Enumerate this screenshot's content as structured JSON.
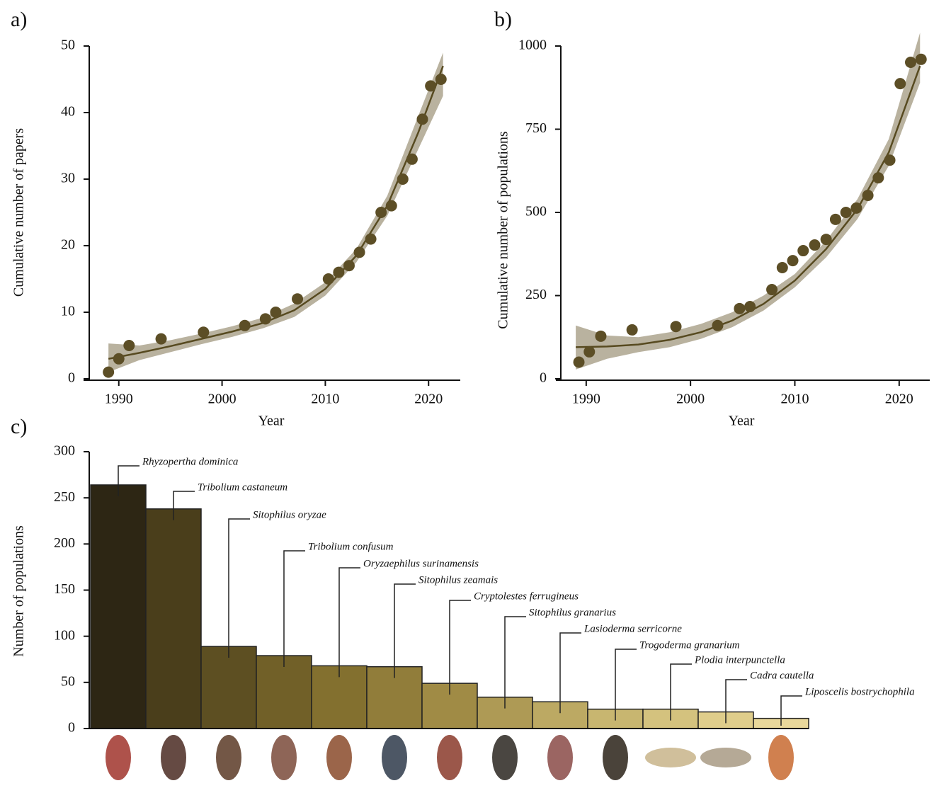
{
  "chart_data": [
    {
      "type": "scatter-fit",
      "panel_label": "a)",
      "x_label": "Year",
      "y_label": "Cumulative number of papers",
      "xlim": [
        1987,
        2023
      ],
      "xticks": [
        1990,
        2000,
        2010,
        2020
      ],
      "ylim": [
        0,
        50
      ],
      "yticks": [
        0,
        10,
        20,
        30,
        40,
        50
      ],
      "points": {
        "color": "#5c4e26",
        "x": [
          1989.0,
          1990.0,
          1991.0,
          1994.1,
          1998.2,
          2002.2,
          2004.2,
          2005.2,
          2007.3,
          2010.3,
          2011.3,
          2012.3,
          2013.3,
          2014.4,
          2015.4,
          2016.4,
          2017.5,
          2018.4,
          2019.4,
          2020.2,
          2021.2
        ],
        "values": [
          1,
          3,
          5,
          6,
          7,
          8,
          9,
          10,
          12,
          15,
          16,
          17,
          19,
          21,
          25,
          26,
          30,
          33,
          39,
          44,
          45
        ]
      },
      "fit": {
        "color": "#574a20",
        "band_color": "#b9b29f",
        "x": [
          1989,
          1992,
          1995,
          1998,
          2001,
          2004,
          2007,
          2010,
          2013,
          2016,
          2019,
          2021.4
        ],
        "values": [
          3,
          3.9,
          4.9,
          6,
          7.1,
          8.4,
          10.3,
          13.5,
          18.5,
          26,
          37,
          47
        ],
        "lower": [
          1,
          2.8,
          4,
          5.2,
          6.3,
          7.6,
          9.3,
          12.5,
          17.5,
          24.5,
          34.5,
          42.5
        ],
        "upper": [
          5.3,
          5,
          5.8,
          6.8,
          7.9,
          9.2,
          11.3,
          14.5,
          19.5,
          27.5,
          39.5,
          49
        ]
      }
    },
    {
      "type": "scatter-fit",
      "panel_label": "b)",
      "x_label": "Year",
      "y_label": "Cumulative number of populations",
      "xlim": [
        1987.5,
        2023
      ],
      "xticks": [
        1990,
        2000,
        2010,
        2020
      ],
      "ylim": [
        0,
        1000
      ],
      "yticks": [
        0,
        250,
        500,
        750,
        1000
      ],
      "points": {
        "color": "#5c4e26",
        "x": [
          1989.3,
          1990.3,
          1991.4,
          1994.4,
          1998.6,
          2002.6,
          2004.7,
          2005.7,
          2007.8,
          2008.8,
          2009.8,
          2010.8,
          2011.9,
          2013.0,
          2013.9,
          2014.9,
          2015.9,
          2017.0,
          2018.0,
          2019.1,
          2020.1,
          2021.1,
          2022.1
        ],
        "values": [
          50,
          81,
          128,
          147,
          157,
          160,
          211,
          217,
          268,
          334,
          355,
          385,
          402,
          419,
          479,
          500,
          513,
          551,
          604,
          657,
          887,
          951,
          960
        ]
      },
      "fit": {
        "color": "#574a20",
        "band_color": "#b9b29f",
        "x": [
          1989,
          1992,
          1995,
          1998,
          2001,
          2004,
          2007,
          2010,
          2013,
          2016,
          2019,
          2022
        ],
        "values": [
          95,
          97,
          103,
          117,
          140,
          175,
          225,
          295,
          390,
          510,
          680,
          940
        ],
        "lower": [
          28,
          60,
          80,
          95,
          120,
          155,
          205,
          275,
          365,
          480,
          640,
          890
        ],
        "upper": [
          160,
          130,
          125,
          140,
          165,
          200,
          250,
          315,
          415,
          540,
          720,
          1040
        ]
      }
    },
    {
      "type": "bar",
      "panel_label": "c)",
      "y_label": "Number of populations",
      "ylim": [
        0,
        300
      ],
      "yticks": [
        0,
        50,
        100,
        150,
        200,
        250,
        300
      ],
      "categories": [
        "Rhyzopertha dominica",
        "Tribolium castaneum",
        "Sitophilus oryzae",
        "Tribolium confusum",
        "Oryzaephilus surinamensis",
        "Sitophilus zeamais",
        "Cryptolestes ferrugineus",
        "Sitophilus granarius",
        "Lasioderma serricorne",
        "Trogoderma granarium",
        "Plodia interpunctella",
        "Cadra cautella",
        "Liposcelis bostrychophila"
      ],
      "values": [
        264,
        238,
        89,
        79,
        68,
        67,
        49,
        34,
        29,
        21,
        21,
        18,
        11
      ],
      "colors": [
        "#2d2614",
        "#4a3e1b",
        "#5d4f22",
        "#716028",
        "#83702f",
        "#917d3a",
        "#a08b45",
        "#ae9a55",
        "#bca963",
        "#c8b670",
        "#d4c27e",
        "#dfcd8b",
        "#e9d89b"
      ]
    }
  ]
}
